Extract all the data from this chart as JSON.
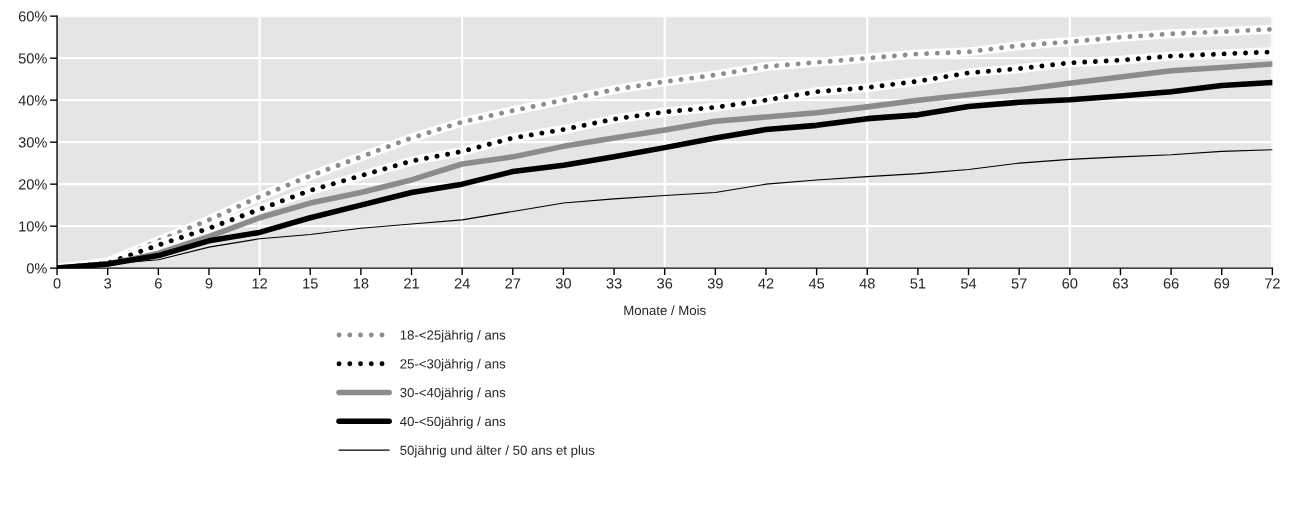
{
  "chart_data": {
    "type": "line",
    "xlabel": "Monate / Mois",
    "x": [
      0,
      3,
      6,
      9,
      12,
      15,
      18,
      21,
      24,
      27,
      30,
      33,
      36,
      39,
      42,
      45,
      48,
      51,
      54,
      57,
      60,
      63,
      66,
      69,
      72
    ],
    "series": [
      {
        "name": "18-<25jährig / ans",
        "color": "#8c8c8c",
        "line_style": "dotted",
        "values": [
          0,
          1.5,
          6.5,
          11.5,
          17,
          22,
          26.5,
          31,
          34.8,
          37.5,
          40,
          42.5,
          44.4,
          46,
          48,
          49,
          50,
          51,
          51.5,
          53,
          53.9,
          55,
          55.8,
          56.3,
          56.9
        ]
      },
      {
        "name": "25-<30jährig / ans",
        "color": "#000000",
        "line_style": "dotted",
        "values": [
          0,
          1.2,
          5.5,
          9.5,
          14,
          18.5,
          22,
          25.5,
          27.8,
          31,
          33,
          35.5,
          37.2,
          38.3,
          40,
          42,
          43,
          44.5,
          46.5,
          47.5,
          48.9,
          49.5,
          50.5,
          51,
          51.5
        ]
      },
      {
        "name": "30-<40jährig / ans",
        "color": "#8c8c8c",
        "line_style": "solid",
        "values": [
          0,
          1,
          3.5,
          7.5,
          12,
          15.5,
          18,
          21,
          24.8,
          26.5,
          29,
          31,
          32.9,
          35,
          36,
          37,
          38.4,
          40,
          41.3,
          42.5,
          44,
          45.5,
          47,
          47.8,
          48.6
        ]
      },
      {
        "name": "40-<50jährig / ans",
        "color": "#000000",
        "line_style": "solid",
        "values": [
          0,
          1,
          3,
          6.5,
          8.5,
          12,
          15,
          18,
          20,
          23,
          24.5,
          26.5,
          28.7,
          31,
          33,
          34,
          35.6,
          36.5,
          38.5,
          39.5,
          40.1,
          41,
          42,
          43.5,
          44.2
        ]
      },
      {
        "name": "50jährig und älter / 50 ans et plus",
        "color": "#000000",
        "line_style": "solid",
        "values": [
          0,
          1,
          2,
          5,
          7,
          8,
          9.5,
          10.5,
          11.5,
          13.5,
          15.5,
          16.5,
          17.3,
          18,
          20,
          21,
          21.8,
          22.5,
          23.5,
          25,
          25.9,
          26.5,
          27,
          27.8,
          28.2
        ]
      }
    ],
    "xlim": [
      0,
      72
    ],
    "xticks": [
      0,
      3,
      6,
      9,
      12,
      15,
      18,
      21,
      24,
      27,
      30,
      33,
      36,
      39,
      42,
      45,
      48,
      51,
      54,
      57,
      60,
      63,
      66,
      69,
      72
    ],
    "ylim": [
      0,
      60
    ],
    "yticks": [
      {
        "value": 0,
        "label": "0%"
      },
      {
        "value": 10,
        "label": "10%"
      },
      {
        "value": 20,
        "label": "20%"
      },
      {
        "value": 30,
        "label": "30%"
      },
      {
        "value": 40,
        "label": "40%"
      },
      {
        "value": 50,
        "label": "50%"
      },
      {
        "value": 60,
        "label": "60%"
      }
    ],
    "grid": true,
    "legend": "bottom",
    "marker": "none"
  }
}
